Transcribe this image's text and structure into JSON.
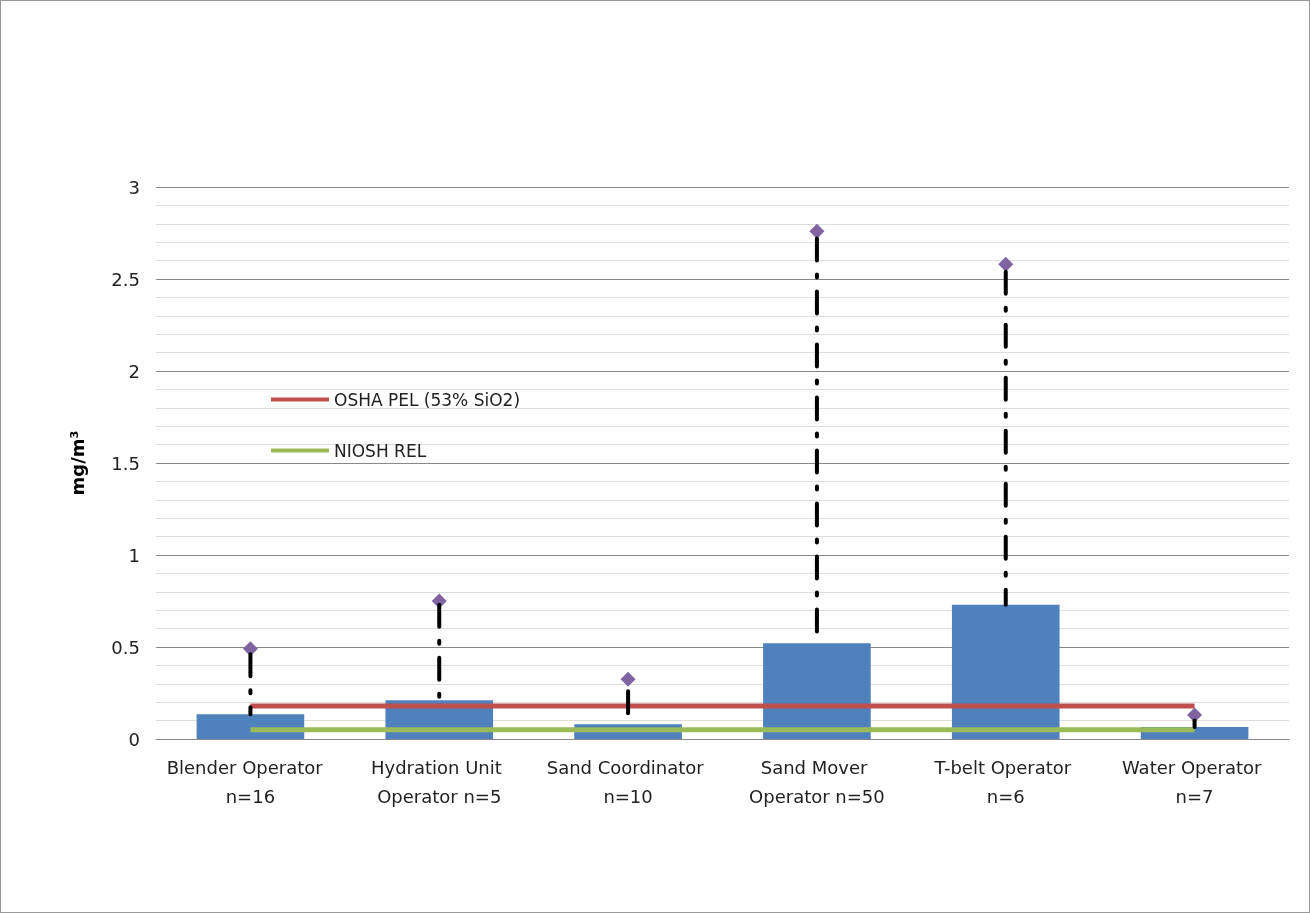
{
  "chart_data": {
    "type": "bar",
    "ylabel": "mg/m³",
    "categories": [
      "Blender Operator  n=16",
      "Hydration Unit Operator n=5",
      "Sand Coordinator n=10",
      "Sand Mover Operator n=50",
      "T-belt Operator n=6",
      "Water Operator n=7"
    ],
    "values": [
      0.135,
      0.21,
      0.08,
      0.52,
      0.73,
      0.065
    ],
    "color": "#4f81bd",
    "errors": [
      [
        0.135,
        0.46
      ],
      [
        0.21,
        0.73
      ],
      [
        0.08,
        0.26
      ],
      [
        0.52,
        2.72
      ],
      [
        0.73,
        2.54
      ],
      [
        0.065,
        0.1
      ]
    ],
    "series": [
      {
        "type": "scatter",
        "x": [
          "Blender Operator  n=16",
          "Hydration Unit Operator n=5",
          "Sand Coordinator n=10",
          "Sand Mover Operator n=50",
          "T-belt Operator n=6",
          "Water Operator n=7"
        ],
        "values": [
          0.49,
          0.75,
          0.325,
          2.76,
          2.58,
          0.13
        ],
        "color": "#8064a2",
        "marker": "diamond"
      }
    ],
    "ref_lines": [
      {
        "axis": "y",
        "value": 0.18,
        "label": "OSHA PEL (53% SiO2)",
        "color": "#c0504d"
      },
      {
        "axis": "y",
        "value": 0.05,
        "label": "NIOSH REL",
        "color": "#9bbb59"
      }
    ],
    "ylim": [
      0,
      3
    ],
    "yticks": [
      0,
      0.5,
      1,
      1.5,
      2,
      2.5,
      3
    ],
    "grid": "y",
    "legend": "left"
  }
}
